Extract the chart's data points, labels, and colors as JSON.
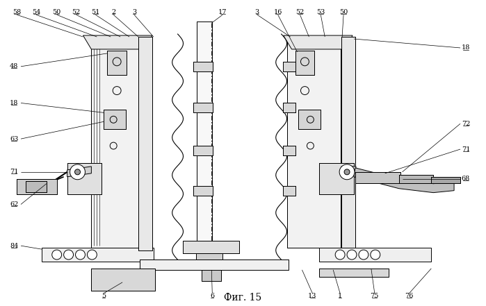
{
  "title": "Фиг. 15",
  "title_fontsize": 10,
  "bg_color": "#ffffff",
  "line_color": "#000000"
}
